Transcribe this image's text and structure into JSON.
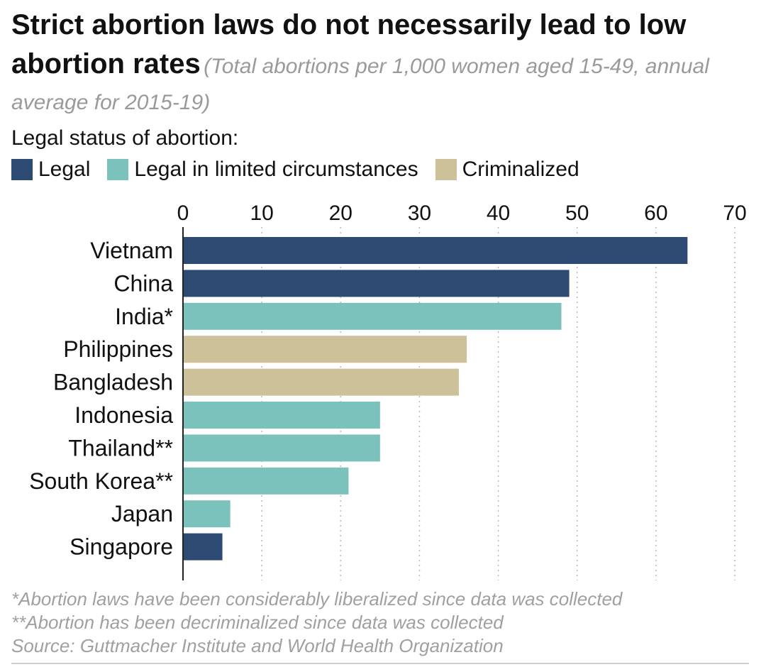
{
  "chart_data": {
    "type": "bar",
    "orientation": "horizontal",
    "title": "Strict abortion laws do not necessarily lead to low abortion rates",
    "subtitle": "(Total abortions per 1,000 women aged 15-49, annual average for 2015-19)",
    "legend_title": "Legal status of abortion:",
    "legend": [
      {
        "key": "legal",
        "label": "Legal",
        "color": "#2d4a73"
      },
      {
        "key": "limited",
        "label": "Legal in limited circumstances",
        "color": "#7bc2bd"
      },
      {
        "key": "criminalized",
        "label": "Criminalized",
        "color": "#cdc19a"
      }
    ],
    "categories": [
      "Vietnam",
      "China",
      "India*",
      "Philippines",
      "Bangladesh",
      "Indonesia",
      "Thailand**",
      "South Korea**",
      "Japan",
      "Singapore"
    ],
    "values": [
      64,
      49,
      48,
      36,
      35,
      25,
      25,
      21,
      6,
      5
    ],
    "status": [
      "legal",
      "legal",
      "limited",
      "criminalized",
      "criminalized",
      "limited",
      "limited",
      "limited",
      "limited",
      "legal"
    ],
    "xlim": [
      0,
      70
    ],
    "xticks": [
      0,
      10,
      20,
      30,
      40,
      50,
      60,
      70
    ],
    "grid": true,
    "axis_position": "top",
    "legend_position": "top-left"
  },
  "footnotes": [
    "*Abortion laws have been considerably liberalized since data was collected",
    "**Abortion has been decriminalized since data was collected",
    "Source: Guttmacher Institute and World Health Organization"
  ]
}
